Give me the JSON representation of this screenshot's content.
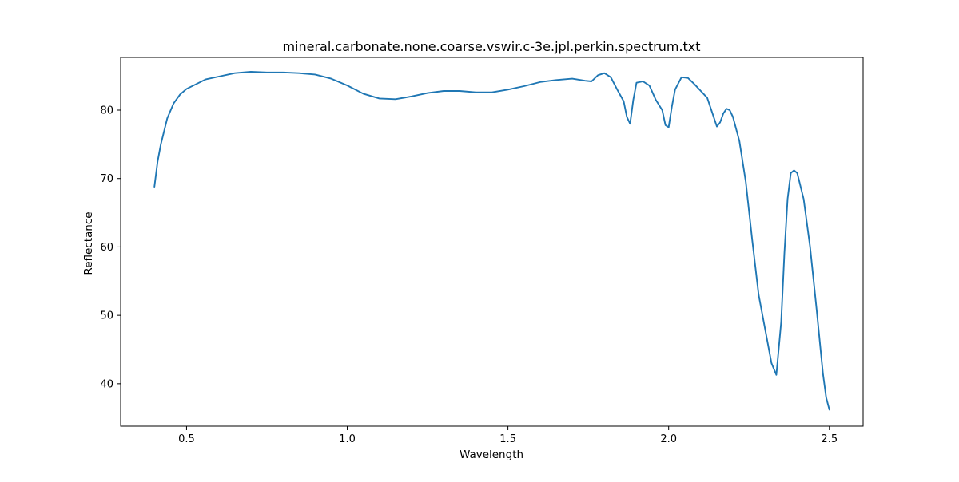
{
  "chart_data": {
    "type": "line",
    "title": "mineral.carbonate.none.coarse.vswir.c-3e.jpl.perkin.spectrum.txt",
    "xlabel": "Wavelength",
    "ylabel": "Reflectance",
    "xlim": [
      0.295,
      2.605
    ],
    "ylim": [
      33.8,
      87.7
    ],
    "xticks": [
      0.5,
      1.0,
      1.5,
      2.0,
      2.5
    ],
    "xtick_labels": [
      "0.5",
      "1.0",
      "1.5",
      "2.0",
      "2.5"
    ],
    "yticks": [
      40,
      50,
      60,
      70,
      80
    ],
    "ytick_labels": [
      "40",
      "50",
      "60",
      "70",
      "80"
    ],
    "grid": false,
    "line_color": "#1f77b4",
    "series": [
      {
        "x": [
          0.4,
          0.41,
          0.42,
          0.44,
          0.46,
          0.48,
          0.5,
          0.53,
          0.56,
          0.6,
          0.65,
          0.7,
          0.75,
          0.8,
          0.85,
          0.9,
          0.95,
          1.0,
          1.05,
          1.1,
          1.15,
          1.2,
          1.25,
          1.3,
          1.35,
          1.4,
          1.45,
          1.5,
          1.55,
          1.6,
          1.65,
          1.7,
          1.74,
          1.76,
          1.78,
          1.8,
          1.82,
          1.84,
          1.86,
          1.87,
          1.88,
          1.89,
          1.9,
          1.92,
          1.94,
          1.96,
          1.98,
          1.99,
          2.0,
          2.01,
          2.02,
          2.04,
          2.06,
          2.08,
          2.1,
          2.12,
          2.14,
          2.15,
          2.16,
          2.17,
          2.18,
          2.19,
          2.2,
          2.22,
          2.24,
          2.26,
          2.28,
          2.3,
          2.32,
          2.335,
          2.35,
          2.36,
          2.37,
          2.38,
          2.39,
          2.4,
          2.42,
          2.44,
          2.46,
          2.48,
          2.49,
          2.5
        ],
        "y": [
          68.8,
          72.5,
          75.0,
          78.8,
          81.0,
          82.3,
          83.1,
          83.8,
          84.5,
          84.9,
          85.4,
          85.6,
          85.5,
          85.5,
          85.4,
          85.2,
          84.6,
          83.6,
          82.4,
          81.7,
          81.6,
          82.0,
          82.5,
          82.8,
          82.8,
          82.6,
          82.6,
          83.0,
          83.5,
          84.1,
          84.4,
          84.6,
          84.3,
          84.2,
          85.1,
          85.4,
          84.8,
          83.0,
          81.3,
          79.0,
          78.0,
          81.5,
          84.0,
          84.2,
          83.6,
          81.5,
          80.0,
          77.8,
          77.5,
          80.5,
          83.0,
          84.8,
          84.7,
          83.8,
          82.8,
          81.8,
          79.0,
          77.6,
          78.2,
          79.5,
          80.2,
          80.0,
          79.0,
          75.5,
          69.5,
          61.0,
          53.0,
          48.0,
          43.0,
          41.3,
          49.0,
          59.0,
          67.0,
          70.8,
          71.2,
          70.8,
          67.0,
          60.0,
          51.0,
          41.5,
          38.0,
          36.2
        ]
      }
    ]
  }
}
